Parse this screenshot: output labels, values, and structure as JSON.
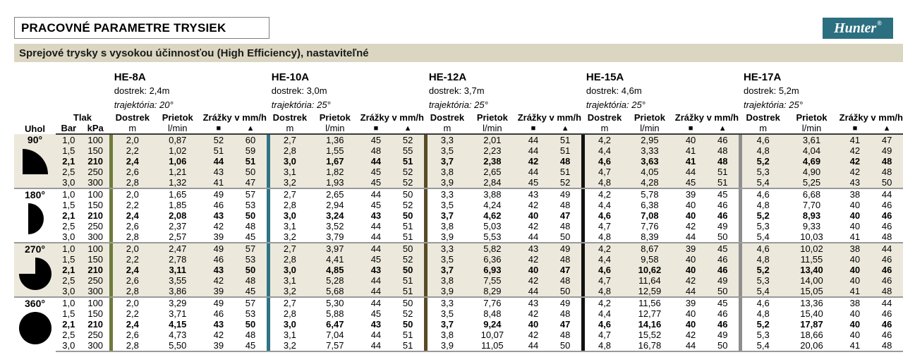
{
  "page": {
    "title": "PRACOVNÉ PARAMETRE TRYSIEK",
    "subtitle": "Sprejové trysky s vysokou účinnosťou (High Efficiency), nastaviteľné",
    "brand": "Hunter",
    "brand_reg": "®",
    "brand_bg": "#2B6F80"
  },
  "table": {
    "col_headers": {
      "uhol": "Uhol",
      "tlak": "Tlak",
      "bar": "Bar",
      "kpa": "kPa",
      "dostrek": "Dostrek",
      "prietok": "Prietok",
      "zrazky": "Zrážky v mm/h",
      "m": "m",
      "lmin": "l/min",
      "square": "■",
      "triangle": "▲"
    },
    "nozzles": [
      {
        "name": "HE-8A",
        "dostrek": "dostrek: 2,4m",
        "trajektoria": "trajektória: 20°",
        "bar_color": "#6E7B3C"
      },
      {
        "name": "HE-10A",
        "dostrek": "dostrek: 3,0m",
        "trajektoria": "trajektória: 25°",
        "bar_color": "#2F7484"
      },
      {
        "name": "HE-12A",
        "dostrek": "dostrek: 3,7m",
        "trajektoria": "trajektória: 25°",
        "bar_color": "#5A4A26"
      },
      {
        "name": "HE-15A",
        "dostrek": "dostrek: 4,6m",
        "trajektoria": "trajektória: 25°",
        "bar_color": "#111111"
      },
      {
        "name": "HE-17A",
        "dostrek": "dostrek: 5,2m",
        "trajektoria": "trajektória: 25°",
        "bar_color": "#8E8E8E"
      }
    ],
    "sections": [
      {
        "angle": "90°",
        "icon": "quarter-circle-icon",
        "shaded": true,
        "rows": [
          {
            "bar": "1,0",
            "kpa": "100",
            "bold": false,
            "values": [
              [
                "2,0",
                "0,87",
                "52",
                "60"
              ],
              [
                "2,7",
                "1,36",
                "45",
                "52"
              ],
              [
                "3,3",
                "2,01",
                "44",
                "51"
              ],
              [
                "4,2",
                "2,95",
                "40",
                "46"
              ],
              [
                "4,6",
                "3,61",
                "41",
                "47"
              ]
            ]
          },
          {
            "bar": "1,5",
            "kpa": "150",
            "bold": false,
            "values": [
              [
                "2,2",
                "1,02",
                "51",
                "59"
              ],
              [
                "2,8",
                "1,55",
                "48",
                "55"
              ],
              [
                "3,5",
                "2,23",
                "44",
                "51"
              ],
              [
                "4,4",
                "3,33",
                "41",
                "48"
              ],
              [
                "4,8",
                "4,04",
                "42",
                "49"
              ]
            ]
          },
          {
            "bar": "2,1",
            "kpa": "210",
            "bold": true,
            "values": [
              [
                "2,4",
                "1,06",
                "44",
                "51"
              ],
              [
                "3,0",
                "1,67",
                "44",
                "51"
              ],
              [
                "3,7",
                "2,38",
                "42",
                "48"
              ],
              [
                "4,6",
                "3,63",
                "41",
                "48"
              ],
              [
                "5,2",
                "4,69",
                "42",
                "48"
              ]
            ]
          },
          {
            "bar": "2,5",
            "kpa": "250",
            "bold": false,
            "values": [
              [
                "2,6",
                "1,21",
                "43",
                "50"
              ],
              [
                "3,1",
                "1,82",
                "45",
                "52"
              ],
              [
                "3,8",
                "2,65",
                "44",
                "51"
              ],
              [
                "4,7",
                "4,05",
                "44",
                "51"
              ],
              [
                "5,3",
                "4,90",
                "42",
                "48"
              ]
            ]
          },
          {
            "bar": "3,0",
            "kpa": "300",
            "bold": false,
            "values": [
              [
                "2,8",
                "1,32",
                "41",
                "47"
              ],
              [
                "3,2",
                "1,93",
                "45",
                "52"
              ],
              [
                "3,9",
                "2,84",
                "45",
                "52"
              ],
              [
                "4,8",
                "4,28",
                "45",
                "51"
              ],
              [
                "5,4",
                "5,25",
                "43",
                "50"
              ]
            ]
          }
        ]
      },
      {
        "angle": "180°",
        "icon": "half-circle-icon",
        "shaded": false,
        "rows": [
          {
            "bar": "1,0",
            "kpa": "100",
            "bold": false,
            "values": [
              [
                "2,0",
                "1,65",
                "49",
                "57"
              ],
              [
                "2,7",
                "2,65",
                "44",
                "50"
              ],
              [
                "3,3",
                "3,88",
                "43",
                "49"
              ],
              [
                "4,2",
                "5,78",
                "39",
                "45"
              ],
              [
                "4,6",
                "6,68",
                "38",
                "44"
              ]
            ]
          },
          {
            "bar": "1,5",
            "kpa": "150",
            "bold": false,
            "values": [
              [
                "2,2",
                "1,85",
                "46",
                "53"
              ],
              [
                "2,8",
                "2,94",
                "45",
                "52"
              ],
              [
                "3,5",
                "4,24",
                "42",
                "48"
              ],
              [
                "4,4",
                "6,38",
                "40",
                "46"
              ],
              [
                "4,8",
                "7,70",
                "40",
                "46"
              ]
            ]
          },
          {
            "bar": "2,1",
            "kpa": "210",
            "bold": true,
            "values": [
              [
                "2,4",
                "2,08",
                "43",
                "50"
              ],
              [
                "3,0",
                "3,24",
                "43",
                "50"
              ],
              [
                "3,7",
                "4,62",
                "40",
                "47"
              ],
              [
                "4,6",
                "7,08",
                "40",
                "46"
              ],
              [
                "5,2",
                "8,93",
                "40",
                "46"
              ]
            ]
          },
          {
            "bar": "2,5",
            "kpa": "250",
            "bold": false,
            "values": [
              [
                "2,6",
                "2,37",
                "42",
                "48"
              ],
              [
                "3,1",
                "3,52",
                "44",
                "51"
              ],
              [
                "3,8",
                "5,03",
                "42",
                "48"
              ],
              [
                "4,7",
                "7,76",
                "42",
                "49"
              ],
              [
                "5,3",
                "9,33",
                "40",
                "46"
              ]
            ]
          },
          {
            "bar": "3,0",
            "kpa": "300",
            "bold": false,
            "values": [
              [
                "2,8",
                "2,57",
                "39",
                "45"
              ],
              [
                "3,2",
                "3,79",
                "44",
                "51"
              ],
              [
                "3,9",
                "5,53",
                "44",
                "50"
              ],
              [
                "4,8",
                "8,39",
                "44",
                "50"
              ],
              [
                "5,4",
                "10,03",
                "41",
                "48"
              ]
            ]
          }
        ]
      },
      {
        "angle": "270°",
        "icon": "three-quarter-circle-icon",
        "shaded": true,
        "rows": [
          {
            "bar": "1,0",
            "kpa": "100",
            "bold": false,
            "values": [
              [
                "2,0",
                "2,47",
                "49",
                "57"
              ],
              [
                "2,7",
                "3,97",
                "44",
                "50"
              ],
              [
                "3,3",
                "5,82",
                "43",
                "49"
              ],
              [
                "4,2",
                "8,67",
                "39",
                "45"
              ],
              [
                "4,6",
                "10,02",
                "38",
                "44"
              ]
            ]
          },
          {
            "bar": "1,5",
            "kpa": "150",
            "bold": false,
            "values": [
              [
                "2,2",
                "2,78",
                "46",
                "53"
              ],
              [
                "2,8",
                "4,41",
                "45",
                "52"
              ],
              [
                "3,5",
                "6,36",
                "42",
                "48"
              ],
              [
                "4,4",
                "9,58",
                "40",
                "46"
              ],
              [
                "4,8",
                "11,55",
                "40",
                "46"
              ]
            ]
          },
          {
            "bar": "2,1",
            "kpa": "210",
            "bold": true,
            "values": [
              [
                "2,4",
                "3,11",
                "43",
                "50"
              ],
              [
                "3,0",
                "4,85",
                "43",
                "50"
              ],
              [
                "3,7",
                "6,93",
                "40",
                "47"
              ],
              [
                "4,6",
                "10,62",
                "40",
                "46"
              ],
              [
                "5,2",
                "13,40",
                "40",
                "46"
              ]
            ]
          },
          {
            "bar": "2,5",
            "kpa": "250",
            "bold": false,
            "values": [
              [
                "2,6",
                "3,55",
                "42",
                "48"
              ],
              [
                "3,1",
                "5,28",
                "44",
                "51"
              ],
              [
                "3,8",
                "7,55",
                "42",
                "48"
              ],
              [
                "4,7",
                "11,64",
                "42",
                "49"
              ],
              [
                "5,3",
                "14,00",
                "40",
                "46"
              ]
            ]
          },
          {
            "bar": "3,0",
            "kpa": "300",
            "bold": false,
            "values": [
              [
                "2,8",
                "3,86",
                "39",
                "45"
              ],
              [
                "3,2",
                "5,68",
                "44",
                "51"
              ],
              [
                "3,9",
                "8,29",
                "44",
                "50"
              ],
              [
                "4,8",
                "12,59",
                "44",
                "50"
              ],
              [
                "5,4",
                "15,05",
                "41",
                "48"
              ]
            ]
          }
        ]
      },
      {
        "angle": "360°",
        "icon": "full-circle-icon",
        "shaded": false,
        "rows": [
          {
            "bar": "1,0",
            "kpa": "100",
            "bold": false,
            "values": [
              [
                "2,0",
                "3,29",
                "49",
                "57"
              ],
              [
                "2,7",
                "5,30",
                "44",
                "50"
              ],
              [
                "3,3",
                "7,76",
                "43",
                "49"
              ],
              [
                "4,2",
                "11,56",
                "39",
                "45"
              ],
              [
                "4,6",
                "13,36",
                "38",
                "44"
              ]
            ]
          },
          {
            "bar": "1,5",
            "kpa": "150",
            "bold": false,
            "values": [
              [
                "2,2",
                "3,71",
                "46",
                "53"
              ],
              [
                "2,8",
                "5,88",
                "45",
                "52"
              ],
              [
                "3,5",
                "8,48",
                "42",
                "48"
              ],
              [
                "4,4",
                "12,77",
                "40",
                "46"
              ],
              [
                "4,8",
                "15,40",
                "40",
                "46"
              ]
            ]
          },
          {
            "bar": "2,1",
            "kpa": "210",
            "bold": true,
            "values": [
              [
                "2,4",
                "4,15",
                "43",
                "50"
              ],
              [
                "3,0",
                "6,47",
                "43",
                "50"
              ],
              [
                "3,7",
                "9,24",
                "40",
                "47"
              ],
              [
                "4,6",
                "14,16",
                "40",
                "46"
              ],
              [
                "5,2",
                "17,87",
                "40",
                "46"
              ]
            ]
          },
          {
            "bar": "2,5",
            "kpa": "250",
            "bold": false,
            "values": [
              [
                "2,6",
                "4,73",
                "42",
                "48"
              ],
              [
                "3,1",
                "7,04",
                "44",
                "51"
              ],
              [
                "3,8",
                "10,07",
                "42",
                "48"
              ],
              [
                "4,7",
                "15,52",
                "42",
                "49"
              ],
              [
                "5,3",
                "18,66",
                "40",
                "46"
              ]
            ]
          },
          {
            "bar": "3,0",
            "kpa": "300",
            "bold": false,
            "values": [
              [
                "2,8",
                "5,50",
                "39",
                "45"
              ],
              [
                "3,2",
                "7,57",
                "44",
                "51"
              ],
              [
                "3,9",
                "11,05",
                "44",
                "50"
              ],
              [
                "4,8",
                "16,78",
                "44",
                "50"
              ],
              [
                "5,4",
                "20,06",
                "41",
                "48"
              ]
            ]
          }
        ]
      }
    ]
  }
}
